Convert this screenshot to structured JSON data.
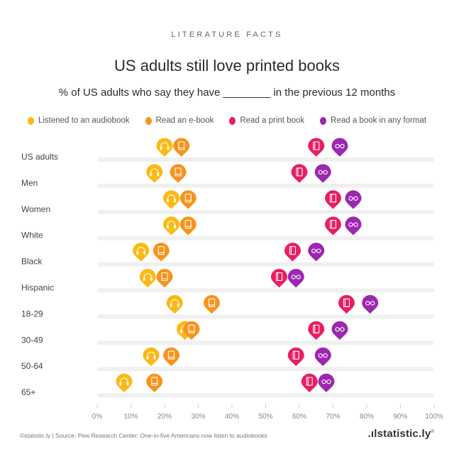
{
  "header": {
    "kicker": "LITERATURE FACTS",
    "title": "US adults still love printed books",
    "subtitle": "% of US adults who say they have ________ in the previous 12 months"
  },
  "legend": [
    {
      "label": "Listened to an audiobook",
      "color": "#FDB913",
      "icon": "headphones-icon"
    },
    {
      "label": "Read an e-book",
      "color": "#F7941D",
      "icon": "tablet-icon"
    },
    {
      "label": "Read a print book",
      "color": "#E91E63",
      "icon": "book-icon"
    },
    {
      "label": "Read a book in any format",
      "color": "#9C27B0",
      "icon": "glasses-icon"
    }
  ],
  "chart_data": {
    "type": "scatter",
    "subtype": "dot-plot",
    "title": "US adults still love printed books",
    "subtitle": "% of US adults who say they have ________ in the previous 12 months",
    "xlabel": "",
    "ylabel": "",
    "xlim": [
      0,
      100
    ],
    "x_ticks": [
      "0%",
      "10%",
      "20%",
      "30%",
      "40%",
      "50%",
      "60%",
      "70%",
      "80%",
      "90%",
      "100%"
    ],
    "grid": false,
    "legend_position": "top",
    "categories": [
      "US adults",
      "Men",
      "Women",
      "White",
      "Black",
      "Hispanic",
      "18-29",
      "30-49",
      "50-64",
      "65+"
    ],
    "series": [
      {
        "name": "Listened to an audiobook",
        "color": "#FDB913",
        "icon": "headphones-icon",
        "values": [
          20,
          17,
          22,
          22,
          13,
          15,
          23,
          26,
          16,
          8
        ]
      },
      {
        "name": "Read an e-book",
        "color": "#F7941D",
        "icon": "tablet-icon",
        "values": [
          25,
          24,
          27,
          27,
          19,
          20,
          34,
          28,
          22,
          17
        ]
      },
      {
        "name": "Read a print book",
        "color": "#E91E63",
        "icon": "book-icon",
        "values": [
          65,
          60,
          70,
          70,
          58,
          54,
          74,
          65,
          59,
          63
        ]
      },
      {
        "name": "Read a book in any format",
        "color": "#9C27B0",
        "icon": "glasses-icon",
        "values": [
          72,
          67,
          76,
          76,
          65,
          59,
          81,
          72,
          67,
          68
        ]
      }
    ]
  },
  "footer": {
    "source": "©statistic.ly | Source: Pew Research Center: One-in-five Americans now listen to audiobooks",
    "brand": ".ılstatistic.ly"
  }
}
